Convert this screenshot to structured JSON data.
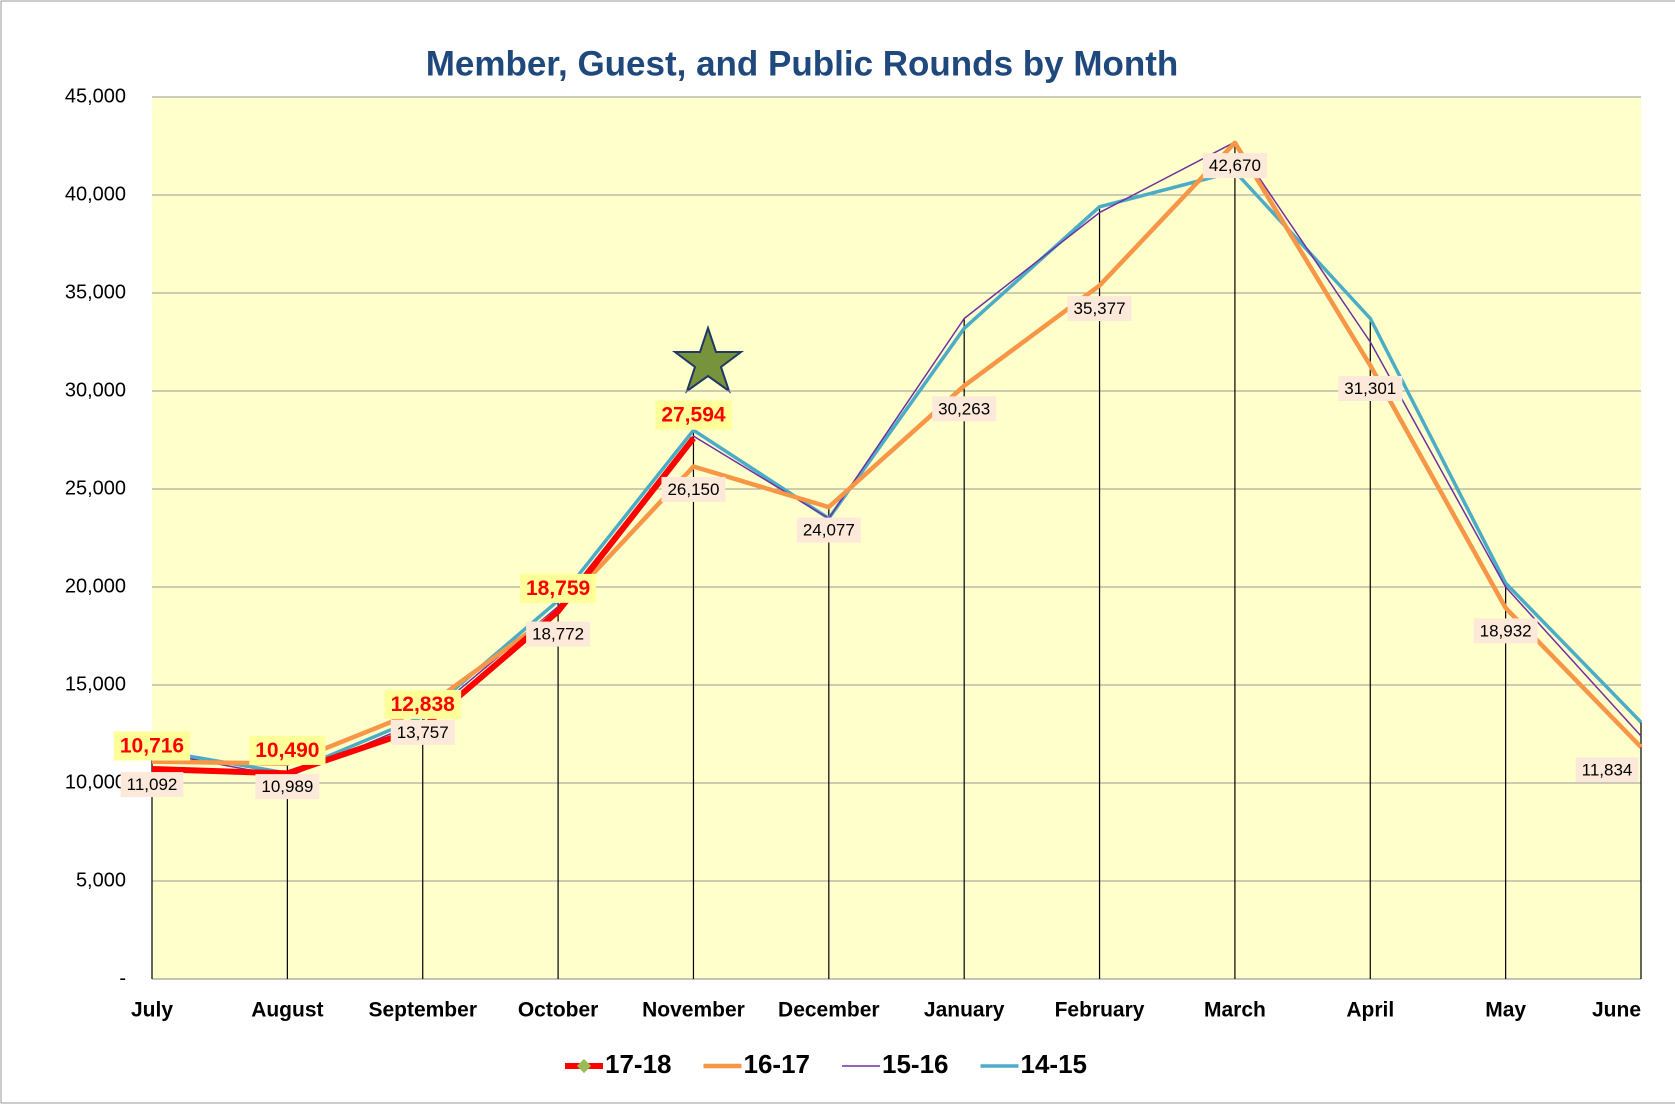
{
  "chart_data": {
    "type": "line",
    "title": "Member, Guest, and Public Rounds by Month",
    "categories": [
      "July",
      "August",
      "September",
      "October",
      "November",
      "December",
      "January",
      "February",
      "March",
      "April",
      "May",
      "June"
    ],
    "ylim": [
      0,
      45000
    ],
    "yticks": [
      {
        "value": 0,
        "label": "-"
      },
      {
        "value": 5000,
        "label": "5,000"
      },
      {
        "value": 10000,
        "label": "10,000"
      },
      {
        "value": 15000,
        "label": "15,000"
      },
      {
        "value": 20000,
        "label": "20,000"
      },
      {
        "value": 25000,
        "label": "25,000"
      },
      {
        "value": 30000,
        "label": "30,000"
      },
      {
        "value": 35000,
        "label": "35,000"
      },
      {
        "value": 40000,
        "label": "40,000"
      },
      {
        "value": 45000,
        "label": "45,000"
      }
    ],
    "grid": true,
    "legend": "bottom",
    "series": [
      {
        "name": "17-18",
        "color": "#ff0000",
        "values": [
          10716,
          10490,
          12838,
          18759,
          27594,
          null,
          null,
          null,
          null,
          null,
          null,
          null
        ],
        "value_labels": [
          "10,716",
          "10,490",
          "12,838",
          "18,759",
          "27,594",
          null,
          null,
          null,
          null,
          null,
          null,
          null
        ]
      },
      {
        "name": "16-17",
        "color": "#f79646",
        "values": [
          11092,
          10989,
          13757,
          18772,
          26150,
          24077,
          30263,
          35377,
          42670,
          31301,
          18932,
          11834
        ],
        "value_labels": [
          "11,092",
          "10,989",
          "13,757",
          "18,772",
          "26,150",
          "24,077",
          "30,263",
          "35,377",
          "42,670",
          "31,301",
          "18,932",
          "11,834"
        ]
      },
      {
        "name": "15-16",
        "color": "#7030a0",
        "values": [
          11600,
          10300,
          13200,
          19000,
          27700,
          23500,
          33700,
          39100,
          42700,
          32500,
          20000,
          12400
        ]
      },
      {
        "name": "14-15",
        "color": "#4bacc6",
        "values": [
          11700,
          10500,
          13400,
          19300,
          28000,
          23500,
          33200,
          39400,
          41200,
          33700,
          20200,
          13100
        ]
      }
    ]
  }
}
